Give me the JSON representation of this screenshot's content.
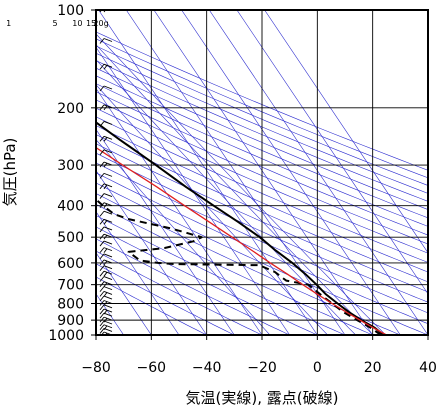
{
  "chart_data": {
    "type": "skew-t",
    "xlabel": "気温(実線), 露点(破線)",
    "ylabel": "気圧(hPa)",
    "x_ticks": [
      -80,
      -60,
      -40,
      -20,
      0,
      20,
      40
    ],
    "x_tick_labels": [
      "−80",
      "−60",
      "−40",
      "−20",
      "0",
      "20",
      "40"
    ],
    "y_ticks": [
      100,
      200,
      300,
      400,
      500,
      600,
      700,
      800,
      900,
      1000
    ],
    "y_tick_labels": [
      "100",
      "200",
      "300",
      "400",
      "500",
      "600",
      "700",
      "800",
      "900",
      "1000"
    ],
    "xlim": [
      -80,
      40
    ],
    "ylim": [
      1000,
      100
    ],
    "mixing_ratio_labels": [
      "1",
      "5",
      "10",
      "15",
      "20g"
    ],
    "series": [
      {
        "role": "temperature",
        "style": "solid",
        "color": "#000000",
        "points": [
          {
            "p": 1000,
            "t": 24
          },
          {
            "p": 950,
            "t": 22.5
          },
          {
            "p": 900,
            "t": 19.5
          },
          {
            "p": 850,
            "t": 17
          },
          {
            "p": 800,
            "t": 15
          },
          {
            "p": 750,
            "t": 13
          },
          {
            "p": 700,
            "t": 12
          },
          {
            "p": 650,
            "t": 10.5
          },
          {
            "p": 600,
            "t": 8.5
          },
          {
            "p": 550,
            "t": 5.5
          },
          {
            "p": 500,
            "t": 3
          },
          {
            "p": 450,
            "t": -1
          },
          {
            "p": 400,
            "t": -6
          },
          {
            "p": 350,
            "t": -11.5
          },
          {
            "p": 300,
            "t": -17
          },
          {
            "p": 250,
            "t": -24
          },
          {
            "p": 200,
            "t": -32
          },
          {
            "p": 150,
            "t": -46
          },
          {
            "p": 120,
            "t": -57
          },
          {
            "p": 110,
            "t": -58
          },
          {
            "p": 100,
            "t": -57
          }
        ]
      },
      {
        "role": "dewpoint",
        "style": "dashed",
        "color": "#000000",
        "points": [
          {
            "p": 1000,
            "t": 23
          },
          {
            "p": 950,
            "t": 21
          },
          {
            "p": 900,
            "t": 18
          },
          {
            "p": 850,
            "t": 15
          },
          {
            "p": 800,
            "t": 13
          },
          {
            "p": 750,
            "t": 11
          },
          {
            "p": 700,
            "t": 9
          },
          {
            "p": 680,
            "t": 2
          },
          {
            "p": 660,
            "t": 1
          },
          {
            "p": 640,
            "t": 0
          },
          {
            "p": 610,
            "t": -4
          },
          {
            "p": 605,
            "t": -34
          },
          {
            "p": 600,
            "t": -40
          },
          {
            "p": 590,
            "t": -46
          },
          {
            "p": 555,
            "t": -48
          },
          {
            "p": 540,
            "t": -34
          },
          {
            "p": 515,
            "t": -22
          },
          {
            "p": 500,
            "t": -18
          },
          {
            "p": 490,
            "t": -21
          },
          {
            "p": 470,
            "t": -27
          },
          {
            "p": 440,
            "t": -40
          },
          {
            "p": 425,
            "t": -44
          },
          {
            "p": 400,
            "t": -46
          },
          {
            "p": 350,
            "t": -49
          },
          {
            "p": 300,
            "t": -55
          },
          {
            "p": 280,
            "t": -58
          },
          {
            "p": 275,
            "t": -57
          },
          {
            "p": 265,
            "t": -46
          },
          {
            "p": 250,
            "t": -41
          },
          {
            "p": 235,
            "t": -45
          },
          {
            "p": 230,
            "t": -60
          },
          {
            "p": 230,
            "t": -80
          }
        ]
      },
      {
        "role": "parcel",
        "style": "solid",
        "color": "#e02020",
        "points": [
          {
            "p": 1000,
            "t": 25
          },
          {
            "p": 950,
            "t": 22
          },
          {
            "p": 900,
            "t": 19
          },
          {
            "p": 850,
            "t": 16
          },
          {
            "p": 800,
            "t": 13
          },
          {
            "p": 750,
            "t": 10
          },
          {
            "p": 700,
            "t": 7
          },
          {
            "p": 650,
            "t": 4
          },
          {
            "p": 600,
            "t": 0.5
          },
          {
            "p": 550,
            "t": -3
          },
          {
            "p": 500,
            "t": -7
          },
          {
            "p": 450,
            "t": -11.5
          },
          {
            "p": 400,
            "t": -16.5
          },
          {
            "p": 350,
            "t": -22
          },
          {
            "p": 300,
            "t": -29
          },
          {
            "p": 250,
            "t": -37
          },
          {
            "p": 200,
            "t": -46
          },
          {
            "p": 150,
            "t": -58
          },
          {
            "p": 130,
            "t": -65
          },
          {
            "p": 120,
            "t": -68
          }
        ]
      }
    ],
    "wind_barb_pressures": [
      1000,
      975,
      950,
      925,
      900,
      875,
      850,
      825,
      800,
      775,
      750,
      725,
      700,
      675,
      650,
      625,
      600,
      575,
      550,
      525,
      500,
      475,
      450,
      425,
      400,
      375,
      350,
      325,
      300,
      275,
      250,
      225,
      200,
      175,
      150,
      125,
      100
    ],
    "colors": {
      "temperature": "#000000",
      "dewpoint": "#000000",
      "parcel": "#e02020",
      "guide_lines": "#3030d0",
      "grid": "#000000"
    }
  }
}
